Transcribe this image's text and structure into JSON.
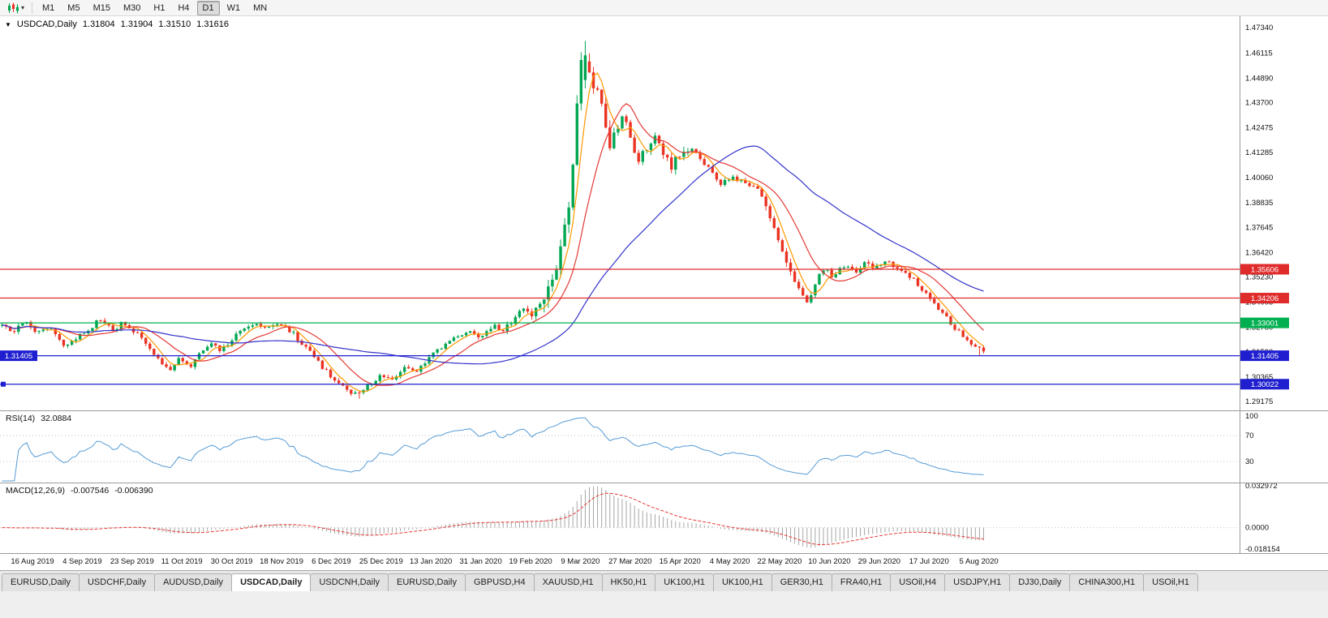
{
  "toolbar": {
    "timeframes": [
      "M1",
      "M5",
      "M15",
      "M30",
      "H1",
      "H4",
      "D1",
      "W1",
      "MN"
    ],
    "active_timeframe": "D1"
  },
  "chart_header": {
    "collapse_marker": "▼",
    "symbol": "USDCAD,Daily",
    "open": "1.31804",
    "high": "1.31904",
    "low": "1.31510",
    "close": "1.31616"
  },
  "price_axis_ticks": [
    "1.47340",
    "1.46115",
    "1.44890",
    "1.43700",
    "1.42475",
    "1.41285",
    "1.40060",
    "1.38835",
    "1.37645",
    "1.36420",
    "1.35230",
    "1.34005",
    "1.32780",
    "1.31590",
    "1.30365",
    "1.29175"
  ],
  "hlines": [
    {
      "value": 1.35606,
      "label": "1.35606",
      "color": "#e02b2b",
      "side": "right"
    },
    {
      "value": 1.34206,
      "label": "1.34206",
      "color": "#e02b2b",
      "side": "right"
    },
    {
      "value": 1.33001,
      "label": "1.33001",
      "color": "#00b050",
      "side": "right"
    },
    {
      "value": 1.31405,
      "label": "1.31405",
      "color": "#1f1fd0",
      "side": "both"
    },
    {
      "value": 1.30022,
      "label": "1.30022",
      "color": "#1f1fd0",
      "side": "right",
      "left_marker": true
    }
  ],
  "rsi_panel": {
    "title": "RSI(14)",
    "value": "32.0884",
    "axis_labels": [
      "100",
      "70",
      "30"
    ]
  },
  "macd_panel": {
    "title": "MACD(12,26,9)",
    "value1": "-0.007546",
    "value2": "-0.006390",
    "axis_labels": [
      "0.032972",
      "0.0000",
      "-0.018154"
    ]
  },
  "date_axis": [
    "16 Aug 2019",
    "4 Sep 2019",
    "23 Sep 2019",
    "11 Oct 2019",
    "30 Oct 2019",
    "18 Nov 2019",
    "6 Dec 2019",
    "25 Dec 2019",
    "13 Jan 2020",
    "31 Jan 2020",
    "19 Feb 2020",
    "9 Mar 2020",
    "27 Mar 2020",
    "15 Apr 2020",
    "4 May 2020",
    "22 May 2020",
    "10 Jun 2020",
    "29 Jun 2020",
    "17 Jul 2020",
    "5 Aug 2020"
  ],
  "tabs": [
    "EURUSD,Daily",
    "USDCHF,Daily",
    "AUDUSD,Daily",
    "USDCAD,Daily",
    "USDCNH,Daily",
    "EURUSD,Daily",
    "GBPUSD,H4",
    "XAUUSD,H1",
    "HK50,H1",
    "UK100,H1",
    "UK100,H1",
    "GER30,H1",
    "FRA40,H1",
    "USOil,H4",
    "USDJPY,H1",
    "DJ30,Daily",
    "CHINA300,H1",
    "USOil,H1"
  ],
  "active_tab_index": 3,
  "colors": {
    "up": "#00a651",
    "down": "#ea3323",
    "rsi": "#569bd5",
    "macd_hist": "#a6a6a6",
    "macd_signal": "#e53935"
  },
  "chart_data": {
    "type": "candlestick",
    "symbol": "USDCAD",
    "timeframe": "Daily",
    "candle_count": 240,
    "candles_area_width": 1215,
    "price_min": 1.2875,
    "price_max": 1.479,
    "last_candle": {
      "open": 1.31804,
      "high": 1.31904,
      "low": 1.3151,
      "close": 1.31616
    },
    "spike": {
      "frac": 0.591,
      "high": 1.467
    },
    "low_marks": [
      [
        0.355,
        1.2945
      ],
      [
        0.362,
        1.2932
      ],
      [
        0.993,
        1.3142
      ]
    ],
    "moving_averages": [
      {
        "period": 5,
        "color": "#ff9800"
      },
      {
        "period": 13,
        "color": "#e53935"
      },
      {
        "period": 45,
        "color": "#3333cc"
      }
    ],
    "rsi": {
      "period": 14
    },
    "macd": {
      "fast": 12,
      "slow": 26,
      "signal": 9,
      "display_max": 0.032972,
      "display_min": -0.018154
    },
    "price_anchors": [
      [
        0.0,
        1.329
      ],
      [
        0.012,
        1.3255
      ],
      [
        0.025,
        1.33
      ],
      [
        0.038,
        1.326
      ],
      [
        0.05,
        1.3282
      ],
      [
        0.057,
        1.324
      ],
      [
        0.068,
        1.318
      ],
      [
        0.08,
        1.3235
      ],
      [
        0.092,
        1.328
      ],
      [
        0.103,
        1.332
      ],
      [
        0.115,
        1.327
      ],
      [
        0.126,
        1.3305
      ],
      [
        0.138,
        1.325
      ],
      [
        0.15,
        1.319
      ],
      [
        0.16,
        1.3125
      ],
      [
        0.172,
        1.3075
      ],
      [
        0.182,
        1.313
      ],
      [
        0.192,
        1.3085
      ],
      [
        0.203,
        1.315
      ],
      [
        0.213,
        1.32
      ],
      [
        0.224,
        1.3165
      ],
      [
        0.236,
        1.3225
      ],
      [
        0.248,
        1.327
      ],
      [
        0.26,
        1.3305
      ],
      [
        0.272,
        1.327
      ],
      [
        0.284,
        1.33
      ],
      [
        0.296,
        1.3255
      ],
      [
        0.311,
        1.318
      ],
      [
        0.324,
        1.31
      ],
      [
        0.338,
        1.303
      ],
      [
        0.352,
        1.297
      ],
      [
        0.362,
        1.2955
      ],
      [
        0.374,
        1.2995
      ],
      [
        0.386,
        1.305
      ],
      [
        0.398,
        1.302
      ],
      [
        0.41,
        1.3085
      ],
      [
        0.422,
        1.306
      ],
      [
        0.434,
        1.3125
      ],
      [
        0.448,
        1.318
      ],
      [
        0.462,
        1.3225
      ],
      [
        0.474,
        1.3265
      ],
      [
        0.486,
        1.323
      ],
      [
        0.498,
        1.3285
      ],
      [
        0.51,
        1.326
      ],
      [
        0.52,
        1.3315
      ],
      [
        0.53,
        1.3365
      ],
      [
        0.54,
        1.3335
      ],
      [
        0.55,
        1.3425
      ],
      [
        0.558,
        1.3505
      ],
      [
        0.565,
        1.3585
      ],
      [
        0.571,
        1.3695
      ],
      [
        0.576,
        1.385
      ],
      [
        0.581,
        1.407
      ],
      [
        0.586,
        1.437
      ],
      [
        0.591,
        1.4625
      ],
      [
        0.595,
        1.449
      ],
      [
        0.599,
        1.4565
      ],
      [
        0.603,
        1.4375
      ],
      [
        0.608,
        1.4455
      ],
      [
        0.613,
        1.4285
      ],
      [
        0.618,
        1.4155
      ],
      [
        0.624,
        1.423
      ],
      [
        0.632,
        1.431
      ],
      [
        0.64,
        1.418
      ],
      [
        0.648,
        1.409
      ],
      [
        0.656,
        1.416
      ],
      [
        0.664,
        1.4215
      ],
      [
        0.672,
        1.413
      ],
      [
        0.68,
        1.406
      ],
      [
        0.69,
        1.411
      ],
      [
        0.7,
        1.416
      ],
      [
        0.71,
        1.4105
      ],
      [
        0.72,
        1.404
      ],
      [
        0.73,
        1.397
      ],
      [
        0.742,
        1.401
      ],
      [
        0.755,
        1.398
      ],
      [
        0.768,
        1.3955
      ],
      [
        0.778,
        1.386
      ],
      [
        0.79,
        1.371
      ],
      [
        0.8,
        1.356
      ],
      [
        0.81,
        1.346
      ],
      [
        0.819,
        1.3405
      ],
      [
        0.827,
        1.349
      ],
      [
        0.836,
        1.356
      ],
      [
        0.846,
        1.3525
      ],
      [
        0.856,
        1.3575
      ],
      [
        0.868,
        1.3545
      ],
      [
        0.878,
        1.3595
      ],
      [
        0.888,
        1.3565
      ],
      [
        0.898,
        1.3605
      ],
      [
        0.908,
        1.3575
      ],
      [
        0.918,
        1.3545
      ],
      [
        0.928,
        1.3505
      ],
      [
        0.938,
        1.345
      ],
      [
        0.948,
        1.34
      ],
      [
        0.958,
        1.334
      ],
      [
        0.968,
        1.328
      ],
      [
        0.978,
        1.323
      ],
      [
        0.988,
        1.319
      ],
      [
        1.0,
        1.3162
      ]
    ]
  }
}
